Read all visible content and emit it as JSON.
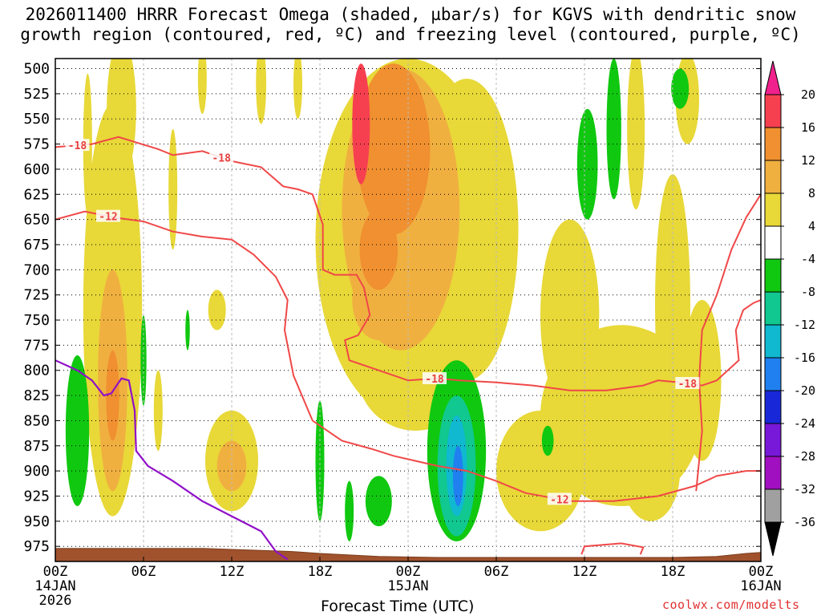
{
  "chart_data": {
    "type": "time-height",
    "title": "2026011400 HRRR Forecast Omega (shaded, µbar/s) for KGVS with dendritic snow\ngrowth region (contoured, red, ºC) and freezing level (contoured, purple, ºC)",
    "xlabel": "Forecast Time (UTC)",
    "credit": "coolwx.com/modelts",
    "x_ticks": [
      {
        "hour": 0,
        "line1": "00Z",
        "line2": "14JAN",
        "line3": "2026"
      },
      {
        "hour": 6,
        "line1": "06Z"
      },
      {
        "hour": 12,
        "line1": "12Z"
      },
      {
        "hour": 18,
        "line1": "18Z"
      },
      {
        "hour": 24,
        "line1": "00Z",
        "line2": "15JAN"
      },
      {
        "hour": 30,
        "line1": "06Z"
      },
      {
        "hour": 36,
        "line1": "12Z"
      },
      {
        "hour": 42,
        "line1": "18Z"
      },
      {
        "hour": 48,
        "line1": "00Z",
        "line2": "16JAN"
      }
    ],
    "xlim_hours": [
      0,
      48
    ],
    "y_ticks": [
      "500",
      "525",
      "550",
      "575",
      "600",
      "625",
      "650",
      "675",
      "700",
      "725",
      "750",
      "775",
      "800",
      "825",
      "850",
      "875",
      "900",
      "925",
      "950",
      "975"
    ],
    "ylim_hPa": [
      490,
      990
    ],
    "colorbar": {
      "labels": [
        "20",
        "16",
        "12",
        "8",
        "4",
        "-4",
        "-8",
        "-12",
        "-16",
        "-20",
        "-24",
        "-28",
        "-32",
        "-36"
      ],
      "bands": [
        {
          "from": 16,
          "to": 20,
          "color": "#f64050"
        },
        {
          "from": 12,
          "to": 16,
          "color": "#f09030"
        },
        {
          "from": 8,
          "to": 12,
          "color": "#f0b040"
        },
        {
          "from": 4,
          "to": 8,
          "color": "#e8d838"
        },
        {
          "from": -4,
          "to": 4,
          "color": "#ffffff"
        },
        {
          "from": -8,
          "to": -4,
          "color": "#10c810"
        },
        {
          "from": -12,
          "to": -8,
          "color": "#10c890"
        },
        {
          "from": -16,
          "to": -12,
          "color": "#10b8d0"
        },
        {
          "from": -20,
          "to": -16,
          "color": "#2080f0"
        },
        {
          "from": -24,
          "to": -20,
          "color": "#1828d8"
        },
        {
          "from": -28,
          "to": -24,
          "color": "#7818d8"
        },
        {
          "from": -32,
          "to": -28,
          "color": "#a010c0"
        },
        {
          "from": -36,
          "to": -32,
          "color": "#a0a0a0"
        }
      ],
      "top_arrow_color": "#f0208c",
      "bottom_arrow_color": "#000000"
    },
    "omega_regions": [
      {
        "value": 6,
        "hour": 3.9,
        "p": 740,
        "hw": 2.0,
        "hp": 205
      },
      {
        "value": 10,
        "hour": 3.9,
        "p": 810,
        "hw": 1.0,
        "hp": 110
      },
      {
        "value": 14,
        "hour": 3.9,
        "p": 825,
        "hw": 0.45,
        "hp": 45
      },
      {
        "value": 6,
        "hour": 4.5,
        "p": 540,
        "hw": 1.0,
        "hp": 70
      },
      {
        "value": 6,
        "hour": 12.0,
        "p": 890,
        "hw": 1.8,
        "hp": 50
      },
      {
        "value": 10,
        "hour": 12.0,
        "p": 895,
        "hw": 1.0,
        "hp": 25
      },
      {
        "value": 6,
        "hour": 11.0,
        "p": 740,
        "hw": 0.6,
        "hp": 20
      },
      {
        "value": 6,
        "hour": 7.0,
        "p": 840,
        "hw": 0.3,
        "hp": 40
      },
      {
        "value": 6,
        "hour": 8.0,
        "p": 620,
        "hw": 0.3,
        "hp": 60
      },
      {
        "value": 6,
        "hour": 2.2,
        "p": 575,
        "hw": 0.3,
        "hp": 70
      },
      {
        "value": 6,
        "hour": 10.0,
        "p": 510,
        "hw": 0.3,
        "hp": 35
      },
      {
        "value": 6,
        "hour": 14.0,
        "p": 515,
        "hw": 0.35,
        "hp": 40
      },
      {
        "value": 6,
        "hour": 16.5,
        "p": 515,
        "hw": 0.3,
        "hp": 35
      },
      {
        "value": 6,
        "hour": 24.0,
        "p": 670,
        "hw": 6.3,
        "hp": 180
      },
      {
        "value": 6,
        "hour": 24.5,
        "p": 800,
        "hw": 4.0,
        "hp": 60
      },
      {
        "value": 6,
        "hour": 28.0,
        "p": 660,
        "hw": 3.5,
        "hp": 150
      },
      {
        "value": 6,
        "hour": 35.0,
        "p": 745,
        "hw": 2.0,
        "hp": 95
      },
      {
        "value": 6,
        "hour": 38.5,
        "p": 845,
        "hw": 5.5,
        "hp": 90
      },
      {
        "value": 6,
        "hour": 33.0,
        "p": 900,
        "hw": 3.0,
        "hp": 60
      },
      {
        "value": 6,
        "hour": 42.0,
        "p": 735,
        "hw": 1.2,
        "hp": 130
      },
      {
        "value": 6,
        "hour": 44.0,
        "p": 810,
        "hw": 1.3,
        "hp": 80
      },
      {
        "value": 6,
        "hour": 39.5,
        "p": 560,
        "hw": 0.6,
        "hp": 80
      },
      {
        "value": 6,
        "hour": 43.0,
        "p": 530,
        "hw": 0.8,
        "hp": 45
      },
      {
        "value": 6,
        "hour": 40.5,
        "p": 900,
        "hw": 2.0,
        "hp": 50
      },
      {
        "value": 10,
        "hour": 23.5,
        "p": 640,
        "hw": 4.0,
        "hp": 140
      },
      {
        "value": 10,
        "hour": 22.0,
        "p": 730,
        "hw": 1.8,
        "hp": 40
      },
      {
        "value": 14,
        "hour": 23.0,
        "p": 580,
        "hw": 2.5,
        "hp": 85
      },
      {
        "value": 14,
        "hour": 22.0,
        "p": 680,
        "hw": 1.3,
        "hp": 40
      },
      {
        "value": 18,
        "hour": 20.8,
        "p": 555,
        "hw": 0.6,
        "hp": 60
      },
      {
        "value": -6,
        "hour": 1.5,
        "p": 860,
        "hw": 0.8,
        "hp": 75
      },
      {
        "value": -6,
        "hour": 6.0,
        "p": 790,
        "hw": 0.2,
        "hp": 45
      },
      {
        "value": -6,
        "hour": 9.0,
        "p": 760,
        "hw": 0.15,
        "hp": 20
      },
      {
        "value": -6,
        "hour": 18.0,
        "p": 890,
        "hw": 0.3,
        "hp": 60
      },
      {
        "value": -6,
        "hour": 20.0,
        "p": 940,
        "hw": 0.3,
        "hp": 30
      },
      {
        "value": -6,
        "hour": 22.0,
        "p": 930,
        "hw": 0.9,
        "hp": 25
      },
      {
        "value": -6,
        "hour": 27.3,
        "p": 880,
        "hw": 2.0,
        "hp": 90
      },
      {
        "value": -6,
        "hour": 33.5,
        "p": 870,
        "hw": 0.4,
        "hp": 15
      },
      {
        "value": -6,
        "hour": 36.2,
        "p": 595,
        "hw": 0.7,
        "hp": 55
      },
      {
        "value": -6,
        "hour": 38.0,
        "p": 560,
        "hw": 0.5,
        "hp": 70
      },
      {
        "value": -6,
        "hour": 42.5,
        "p": 520,
        "hw": 0.6,
        "hp": 20
      },
      {
        "value": -10,
        "hour": 27.3,
        "p": 895,
        "hw": 1.3,
        "hp": 70
      },
      {
        "value": -14,
        "hour": 27.3,
        "p": 895,
        "hw": 0.7,
        "hp": 50
      },
      {
        "value": -18,
        "hour": 27.4,
        "p": 905,
        "hw": 0.35,
        "hp": 30
      }
    ],
    "dgz_contours": [
      {
        "label": "-18",
        "label_hour": 1.5,
        "label_p": 578,
        "points": [
          [
            0,
            578
          ],
          [
            2.5,
            575
          ],
          [
            4.3,
            568
          ],
          [
            7,
            580
          ],
          [
            8,
            586
          ],
          [
            10,
            582
          ],
          [
            12,
            592
          ],
          [
            14,
            598
          ],
          [
            15.5,
            617
          ],
          [
            16.5,
            620
          ],
          [
            17.5,
            625
          ],
          [
            18.2,
            655
          ],
          [
            18.2,
            700
          ],
          [
            19,
            705
          ],
          [
            20.5,
            705
          ],
          [
            21,
            718
          ],
          [
            21.4,
            745
          ],
          [
            20.6,
            765
          ],
          [
            19.7,
            770
          ],
          [
            20,
            790
          ],
          [
            22,
            800
          ],
          [
            24,
            810
          ],
          [
            26,
            808
          ],
          [
            27.5,
            810
          ],
          [
            30,
            812
          ],
          [
            32.5,
            815
          ],
          [
            35,
            820
          ],
          [
            37.5,
            820
          ],
          [
            40,
            815
          ],
          [
            41,
            810
          ],
          [
            42.5,
            812
          ],
          [
            44,
            815
          ],
          [
            45,
            810
          ],
          [
            46.5,
            790
          ],
          [
            46.3,
            760
          ],
          [
            46.8,
            740
          ],
          [
            47.5,
            733
          ],
          [
            48,
            730
          ]
        ]
      },
      {
        "label": "-12",
        "label_hour": 4.0,
        "label_p": 650,
        "points": [
          [
            0,
            650
          ],
          [
            2,
            642
          ],
          [
            4,
            648
          ],
          [
            6,
            652
          ],
          [
            8,
            662
          ],
          [
            10,
            667
          ],
          [
            12,
            670
          ],
          [
            13.5,
            685
          ],
          [
            15,
            707
          ],
          [
            15.8,
            730
          ],
          [
            15.6,
            760
          ],
          [
            16.2,
            805
          ],
          [
            17.5,
            850
          ],
          [
            19.5,
            870
          ],
          [
            21.5,
            878
          ],
          [
            23,
            885
          ],
          [
            24.5,
            890
          ],
          [
            26,
            895
          ],
          [
            28,
            900
          ],
          [
            30,
            910
          ],
          [
            32,
            922
          ],
          [
            35,
            930
          ],
          [
            38,
            930
          ],
          [
            41,
            925
          ],
          [
            43.5,
            915
          ],
          [
            45,
            905
          ],
          [
            47,
            900
          ],
          [
            48,
            900
          ]
        ]
      },
      {
        "label": "",
        "points": [
          [
            43.6,
            920
          ],
          [
            43.8,
            890
          ],
          [
            44,
            860
          ],
          [
            43.8,
            810
          ],
          [
            44,
            760
          ],
          [
            45,
            725
          ],
          [
            46,
            680
          ],
          [
            47,
            648
          ],
          [
            48,
            625
          ]
        ]
      },
      {
        "label": "",
        "points": [
          [
            35.8,
            983
          ],
          [
            36,
            975
          ],
          [
            38.5,
            972
          ],
          [
            40,
            976
          ],
          [
            39.8,
            983
          ]
        ]
      }
    ],
    "freezing_level": [
      [
        0,
        790
      ],
      [
        1.5,
        800
      ],
      [
        2.5,
        810
      ],
      [
        3.3,
        825
      ],
      [
        3.8,
        823
      ],
      [
        4.5,
        808
      ],
      [
        5,
        810
      ],
      [
        5.4,
        840
      ],
      [
        5.5,
        880
      ],
      [
        6.3,
        895
      ],
      [
        8,
        910
      ],
      [
        10,
        930
      ],
      [
        12,
        945
      ],
      [
        14,
        960
      ],
      [
        15,
        980
      ],
      [
        15.8,
        988
      ]
    ],
    "terrain": [
      [
        0,
        977
      ],
      [
        10,
        977
      ],
      [
        16,
        980
      ],
      [
        18,
        982
      ],
      [
        22,
        985
      ],
      [
        26,
        986
      ],
      [
        34,
        986
      ],
      [
        42,
        986
      ],
      [
        45,
        985
      ],
      [
        47,
        982
      ],
      [
        48,
        981
      ]
    ]
  }
}
